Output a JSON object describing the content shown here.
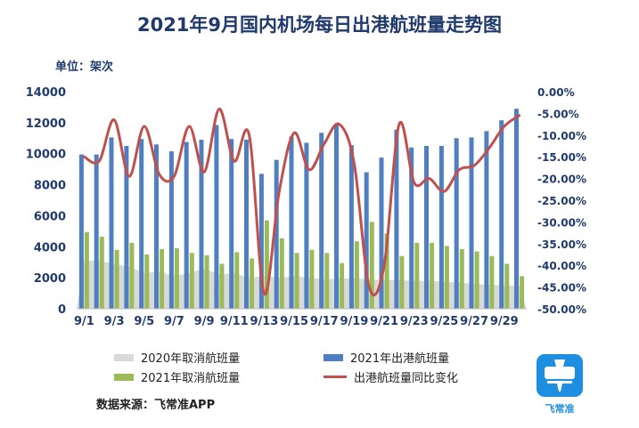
{
  "header": {
    "title": "2021年9月国内机场每日出港航班量走势图",
    "unit": "单位：架次"
  },
  "legend": {
    "s2020": "2020年取消航班量",
    "s2021out": "2021年出港航班量",
    "s2021cancel": "2021年取消航班量",
    "yoy": "出港航班量同比变化"
  },
  "footer": {
    "source": "数据来源：飞常准APP",
    "logo_text": "飞常准"
  },
  "colors": {
    "bar2021": "#4f7fc0",
    "cancel2021": "#9bbb59",
    "area2020": "#d9d9d9",
    "yoy": "#c0504d",
    "title": "#1f3a6b",
    "logo": "#1e8fe0"
  },
  "chart_data": {
    "type": "bar",
    "title": "2021年9月国内机场每日出港航班量走势图",
    "ylabel": "单位：架次",
    "ylim": [
      0,
      14000
    ],
    "y2lim": [
      -50,
      0
    ],
    "y_ticks": [
      "0",
      "2000",
      "4000",
      "6000",
      "8000",
      "10000",
      "12000",
      "14000"
    ],
    "y2_ticks": [
      "-50.00%",
      "-45.00%",
      "-40.00%",
      "-35.00%",
      "-30.00%",
      "-25.00%",
      "-20.00%",
      "-15.00%",
      "-10.00%",
      "-5.00%",
      "0.00%"
    ],
    "categories": [
      "9/1",
      "9/2",
      "9/3",
      "9/4",
      "9/5",
      "9/6",
      "9/7",
      "9/8",
      "9/9",
      "9/10",
      "9/11",
      "9/12",
      "9/13",
      "9/14",
      "9/15",
      "9/16",
      "9/17",
      "9/18",
      "9/19",
      "9/20",
      "9/21",
      "9/22",
      "9/23",
      "9/24",
      "9/25",
      "9/26",
      "9/27",
      "9/28",
      "9/29",
      "9/30"
    ],
    "x_tick_labels": [
      "9/1",
      "9/3",
      "9/5",
      "9/7",
      "9/9",
      "9/11",
      "9/13",
      "9/15",
      "9/17",
      "9/19",
      "9/21",
      "9/23",
      "9/25",
      "9/27",
      "9/29"
    ],
    "series": [
      {
        "name": "2020年取消航班量",
        "kind": "area",
        "values": [
          3100,
          3100,
          2900,
          2700,
          2300,
          2400,
          2100,
          2300,
          2600,
          2200,
          2300,
          2000,
          2100,
          2000,
          2100,
          2000,
          1900,
          1950,
          1950,
          1900,
          1850,
          1850,
          1800,
          1800,
          1750,
          1700,
          1600,
          1550,
          1500,
          1500
        ]
      },
      {
        "name": "2021年出港航班量",
        "kind": "bar",
        "values": [
          9950,
          9950,
          11050,
          10500,
          10950,
          10600,
          10150,
          10750,
          10900,
          11850,
          10950,
          10900,
          8700,
          9600,
          11100,
          10700,
          11350,
          11900,
          10550,
          8800,
          9750,
          11550,
          10400,
          10500,
          10500,
          11000,
          11050,
          11450,
          12150,
          12900
        ]
      },
      {
        "name": "2021年取消航班量",
        "kind": "bar",
        "values": [
          4950,
          4650,
          3800,
          4250,
          3500,
          3850,
          3900,
          3600,
          3450,
          2900,
          3650,
          3250,
          5700,
          4550,
          3600,
          3800,
          3600,
          2950,
          4350,
          5600,
          4850,
          3400,
          4250,
          4250,
          4050,
          3850,
          3700,
          3400,
          2900,
          2100
        ]
      },
      {
        "name": "出港航班量同比变化",
        "kind": "line",
        "axis": "secondary",
        "values": [
          -15.0,
          -16.0,
          -6.5,
          -19.5,
          -8.0,
          -19.0,
          -19.5,
          -8.0,
          -18.5,
          -4.0,
          -16.0,
          -10.0,
          -46.5,
          -23.0,
          -9.5,
          -18.0,
          -12.0,
          -7.5,
          -16.5,
          -45.0,
          -40.0,
          -7.5,
          -21.0,
          -20.0,
          -23.0,
          -18.0,
          -17.0,
          -13.0,
          -8.0,
          -5.5
        ]
      }
    ],
    "grid": false,
    "legend_position": "bottom"
  }
}
